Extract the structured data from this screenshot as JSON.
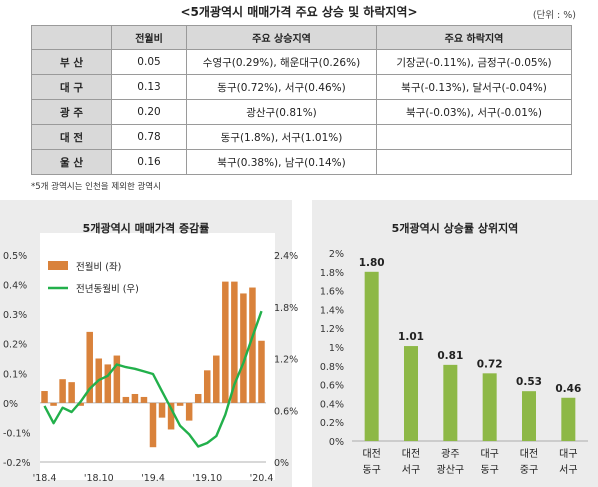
{
  "table": {
    "title": "<5개광역시 매매가격 주요 상승 및 하락지역>",
    "unit": "(단위 : %)",
    "headers": [
      "",
      "전월비",
      "주요 상승지역",
      "주요 하락지역"
    ],
    "rows": [
      {
        "city": "부 산",
        "mom": "0.05",
        "up": "수영구(0.29%), 해운대구(0.26%)",
        "down": "기장군(-0.11%), 금정구(-0.05%)"
      },
      {
        "city": "대 구",
        "mom": "0.13",
        "up": "동구(0.72%), 서구(0.46%)",
        "down": "북구(-0.13%), 달서구(-0.04%)"
      },
      {
        "city": "광 주",
        "mom": "0.20",
        "up": "광산구(0.81%)",
        "down": "북구(-0.03%), 서구(-0.01%)"
      },
      {
        "city": "대 전",
        "mom": "0.78",
        "up": "동구(1.8%), 서구(1.01%)",
        "down": ""
      },
      {
        "city": "울 산",
        "mom": "0.16",
        "up": "북구(0.38%), 남구(0.14%)",
        "down": ""
      }
    ],
    "note": "*5개 광역시는 인천을 제외한 광역시"
  },
  "chart_data": [
    {
      "type": "bar",
      "title": "5개광역시 매매가격 증감률",
      "x_tick_labels": [
        "'18.4",
        "'18.10",
        "'19.4",
        "'19.10",
        "'20.4"
      ],
      "left_axis": {
        "ylim": [
          -0.2,
          0.5
        ],
        "ticks": [
          "0.5%",
          "0.4%",
          "0.3%",
          "0.2%",
          "0.1%",
          "0%",
          "-0.1%",
          "-0.2%"
        ]
      },
      "right_axis": {
        "ylim": [
          0,
          2.4
        ],
        "ticks": [
          "2.4%",
          "1.8%",
          "1.2%",
          "0.6%",
          "0%"
        ]
      },
      "series": [
        {
          "name": "전월비 (좌)",
          "type": "bar",
          "color": "#d9823b",
          "axis": "left",
          "values": [
            0.04,
            -0.01,
            0.08,
            0.07,
            -0.01,
            0.24,
            0.15,
            0.13,
            0.16,
            0.02,
            0.03,
            0.02,
            -0.15,
            -0.05,
            -0.09,
            -0.01,
            -0.06,
            0.03,
            0.11,
            0.16,
            0.41,
            0.41,
            0.37,
            0.39,
            0.21
          ]
        },
        {
          "name": "전년동월비 (우)",
          "type": "line",
          "color": "#22b04b",
          "axis": "right",
          "values": [
            0.65,
            0.45,
            0.63,
            0.58,
            0.7,
            0.85,
            0.95,
            1.0,
            1.13,
            1.1,
            1.08,
            1.05,
            1.02,
            0.82,
            0.62,
            0.42,
            0.32,
            0.18,
            0.22,
            0.3,
            0.55,
            0.9,
            1.15,
            1.45,
            1.75
          ]
        }
      ]
    },
    {
      "type": "bar",
      "title": "5개광역시 상승률 상위지역",
      "ylim": [
        0,
        2
      ],
      "y_ticks": [
        "2%",
        "1.8%",
        "1.6%",
        "1.4%",
        "1.2%",
        "1%",
        "0.8%",
        "0.6%",
        "0.4%",
        "0.2%",
        "0%"
      ],
      "color": "#8db846",
      "categories": [
        [
          "대전",
          "동구"
        ],
        [
          "대전",
          "서구"
        ],
        [
          "광주",
          "광산구"
        ],
        [
          "대구",
          "동구"
        ],
        [
          "대전",
          "중구"
        ],
        [
          "대구",
          "서구"
        ]
      ],
      "values": [
        1.8,
        1.01,
        0.81,
        0.72,
        0.53,
        0.46
      ],
      "value_labels": [
        "1.80",
        "1.01",
        "0.81",
        "0.72",
        "0.53",
        "0.46"
      ]
    }
  ]
}
